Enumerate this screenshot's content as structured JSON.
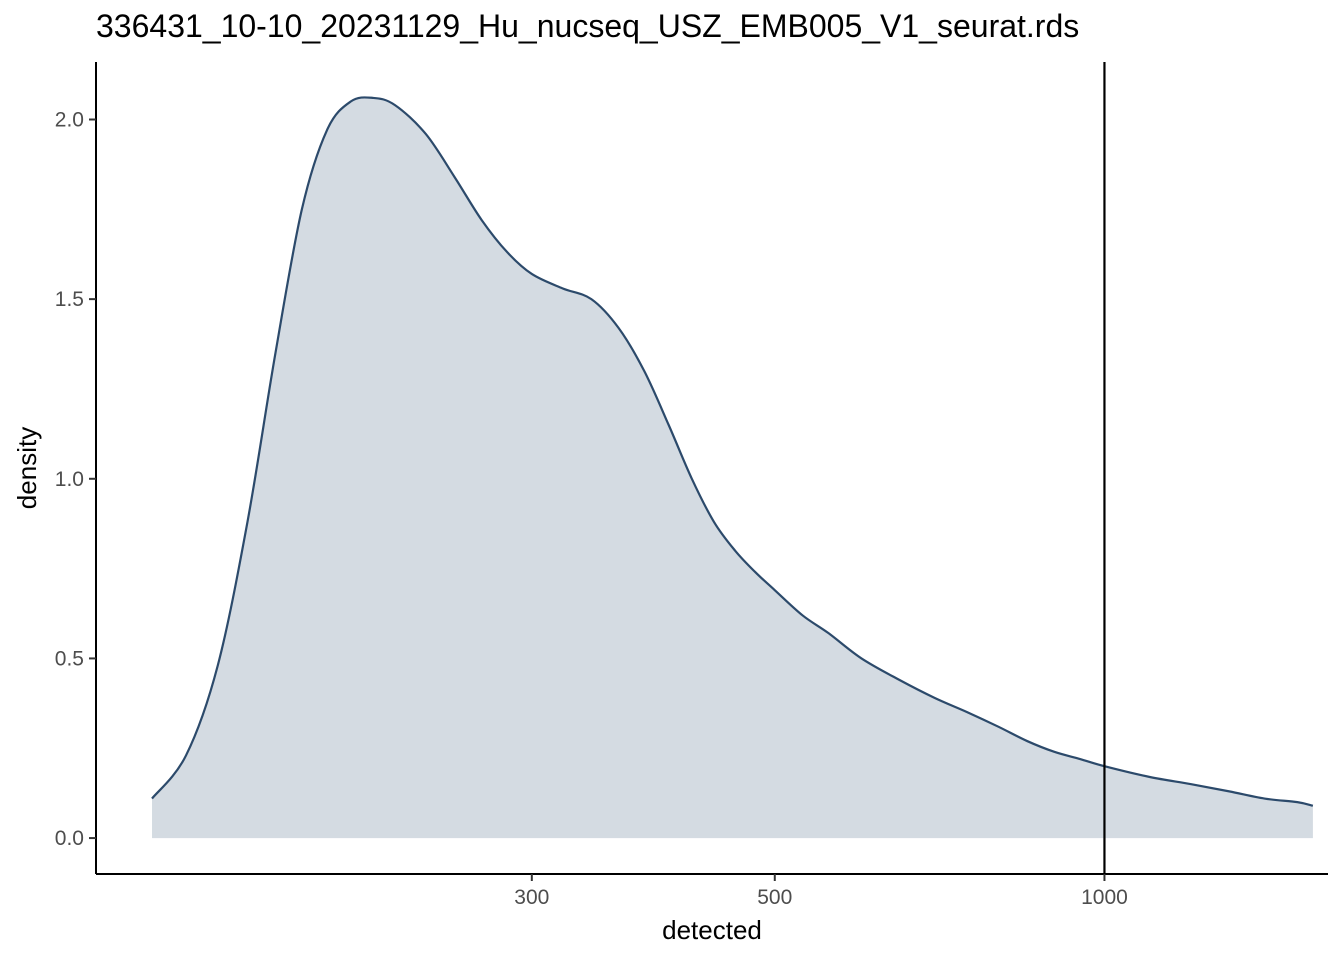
{
  "chart_data": {
    "type": "area",
    "title": "336431_10-10_20231129_Hu_nucseq_USZ_EMB005_V1_seurat.rds",
    "xlabel": "detected",
    "ylabel": "density",
    "x_scale": "log10",
    "xlim": [
      120,
      1600
    ],
    "ylim": [
      -0.1,
      2.16
    ],
    "x_ticks": [
      {
        "value": 300,
        "label": "300"
      },
      {
        "value": 500,
        "label": "500"
      },
      {
        "value": 1000,
        "label": "1000"
      }
    ],
    "y_ticks": [
      {
        "value": 0.0,
        "label": "0.0"
      },
      {
        "value": 0.5,
        "label": "0.5"
      },
      {
        "value": 1.0,
        "label": "1.0"
      },
      {
        "value": 1.5,
        "label": "1.5"
      },
      {
        "value": 2.0,
        "label": "2.0"
      }
    ],
    "series": [
      {
        "x": [
          135,
          145,
          155,
          165,
          175,
          185,
          195,
          205,
          215,
          225,
          240,
          255,
          270,
          285,
          300,
          320,
          340,
          360,
          380,
          400,
          420,
          440,
          460,
          480,
          500,
          530,
          560,
          600,
          650,
          700,
          750,
          800,
          850,
          900,
          950,
          1000,
          1100,
          1200,
          1300,
          1400,
          1500,
          1550
        ],
        "y": [
          0.11,
          0.23,
          0.48,
          0.88,
          1.35,
          1.75,
          1.97,
          2.05,
          2.06,
          2.04,
          1.96,
          1.84,
          1.72,
          1.63,
          1.57,
          1.53,
          1.5,
          1.42,
          1.3,
          1.15,
          1.0,
          0.88,
          0.8,
          0.74,
          0.69,
          0.62,
          0.57,
          0.5,
          0.44,
          0.39,
          0.35,
          0.31,
          0.27,
          0.24,
          0.22,
          0.2,
          0.17,
          0.15,
          0.13,
          0.11,
          0.1,
          0.09
        ]
      }
    ],
    "vline": 1000,
    "line_color": "#2c4a6b",
    "fill_color": "#d4dbe2",
    "grid": false
  }
}
